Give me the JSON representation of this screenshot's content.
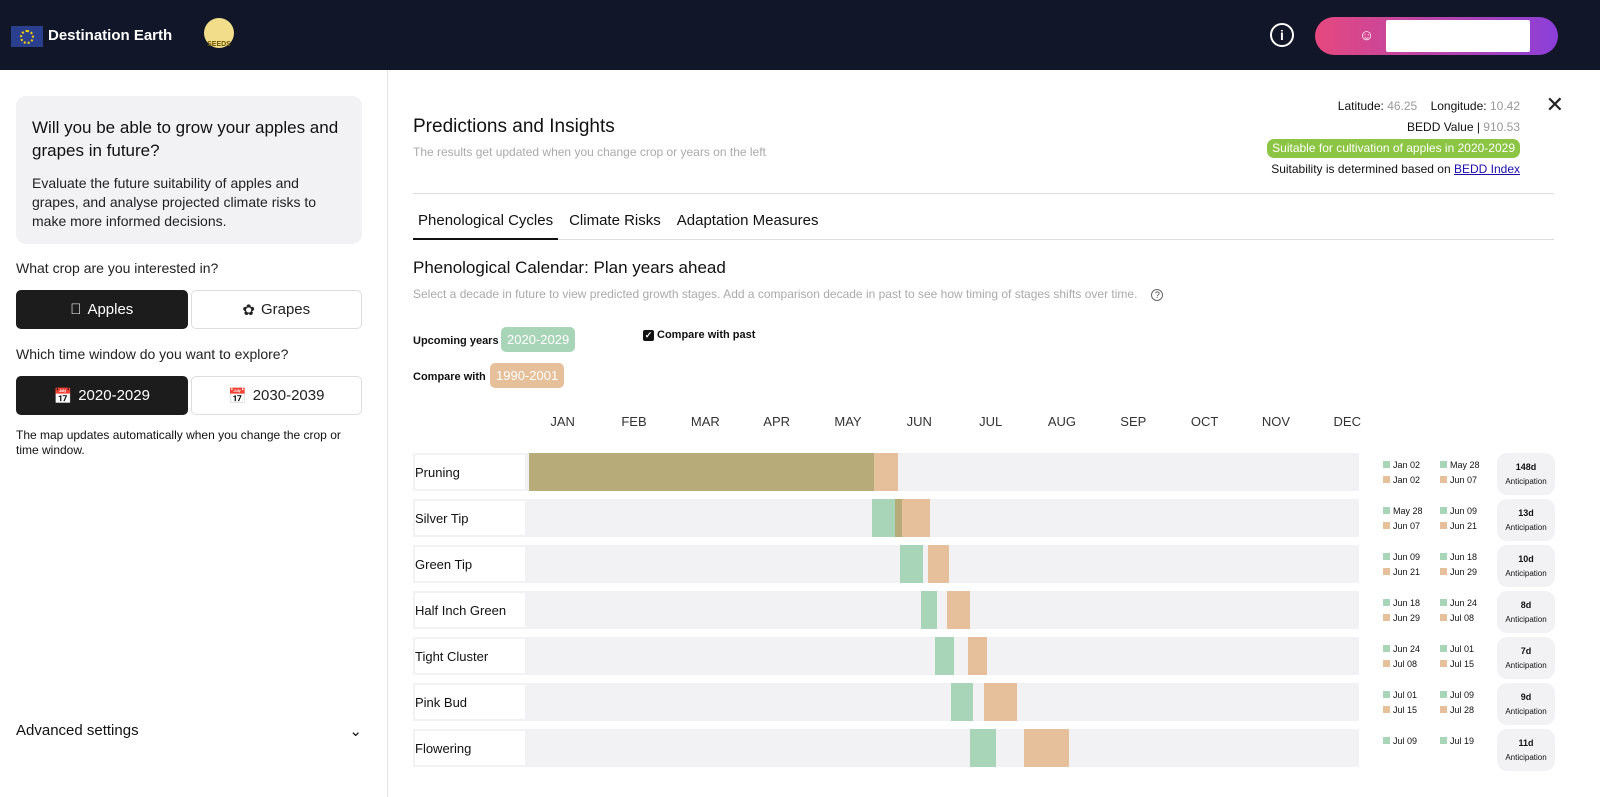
{
  "header": {
    "brand": "Destination Earth",
    "seeds_logo": "SEEDS",
    "info_icon": "info-icon",
    "user_icon": "user-icon"
  },
  "sidebar": {
    "intro_title": "Will you be able to grow your apples and grapes in future?",
    "intro_text": "Evaluate the future suitability of apples and grapes, and analyse projected climate risks to make more informed decisions.",
    "crop_question": "What crop are you interested in?",
    "crops": [
      {
        "label": "Apples",
        "icon": "apple-icon",
        "selected": true
      },
      {
        "label": "Grapes",
        "icon": "grapes-icon",
        "selected": false
      }
    ],
    "time_question": "Which time window do you want to explore?",
    "windows": [
      {
        "label": "2020-2029",
        "icon": "calendar-icon",
        "selected": true
      },
      {
        "label": "2030-2039",
        "icon": "calendar-icon",
        "selected": false
      }
    ],
    "note": "The map updates automatically when you change the crop or time window.",
    "advanced": "Advanced settings"
  },
  "panel": {
    "title": "Predictions and Insights",
    "subtitle": "The results get updated when you change crop or years on the left",
    "lat_label": "Latitude:",
    "lat": "46.25",
    "lon_label": "Longitude:",
    "lon": "10.42",
    "bedd_label": "BEDD Value |",
    "bedd": "910.53",
    "suitability_badge": "Suitable for cultivation of apples in 2020-2029",
    "suitability_note": "Suitability is determined based on",
    "bedd_link": "BEDD Index",
    "tabs": [
      "Phenological Cycles",
      "Climate Risks",
      "Adaptation Measures"
    ],
    "calendar_title": "Phenological Calendar: Plan years ahead",
    "calendar_desc": "Select a decade in future to view predicted growth stages. Add a comparison decade in past to see how timing of stages shifts over time.",
    "upcoming_label": "Upcoming years",
    "upcoming": "2020-2029",
    "compare_label": "Compare with",
    "compare": "1990-2001",
    "compare_checkbox": "Compare with past",
    "compare_checked": true,
    "months": [
      "JAN",
      "FEB",
      "MAR",
      "APR",
      "MAY",
      "JUN",
      "JUL",
      "AUG",
      "SEP",
      "OCT",
      "NOV",
      "DEC"
    ],
    "colors": {
      "future": "#a8d5b8",
      "past": "#e5c09a",
      "overlap": "#b8ab7a",
      "badge": "#8cc543"
    },
    "stages": [
      {
        "name": "Pruning",
        "f_start": "Jan 02",
        "f_end": "May 28",
        "p_start": "Jan 02",
        "p_end": "Jun 07",
        "days": "148d",
        "label": "Anticipation"
      },
      {
        "name": "Silver Tip",
        "f_start": "May 28",
        "f_end": "Jun 09",
        "p_start": "Jun 07",
        "p_end": "Jun 21",
        "days": "13d",
        "label": "Anticipation"
      },
      {
        "name": "Green Tip",
        "f_start": "Jun 09",
        "f_end": "Jun 18",
        "p_start": "Jun 21",
        "p_end": "Jun 29",
        "days": "10d",
        "label": "Anticipation"
      },
      {
        "name": "Half Inch Green",
        "f_start": "Jun 18",
        "f_end": "Jun 24",
        "p_start": "Jun 29",
        "p_end": "Jul 08",
        "days": "8d",
        "label": "Anticipation"
      },
      {
        "name": "Tight Cluster",
        "f_start": "Jun 24",
        "f_end": "Jul 01",
        "p_start": "Jul 08",
        "p_end": "Jul 15",
        "days": "7d",
        "label": "Anticipation"
      },
      {
        "name": "Pink Bud",
        "f_start": "Jul 01",
        "f_end": "Jul 09",
        "p_start": "Jul 15",
        "p_end": "Jul 28",
        "days": "9d",
        "label": "Anticipation"
      },
      {
        "name": "Flowering",
        "f_start": "Jul 09",
        "f_end": "Jul 19",
        "p_start_doy": 212,
        "p_end_doy": 231,
        "days": "11d",
        "label": "Anticipation"
      }
    ]
  }
}
